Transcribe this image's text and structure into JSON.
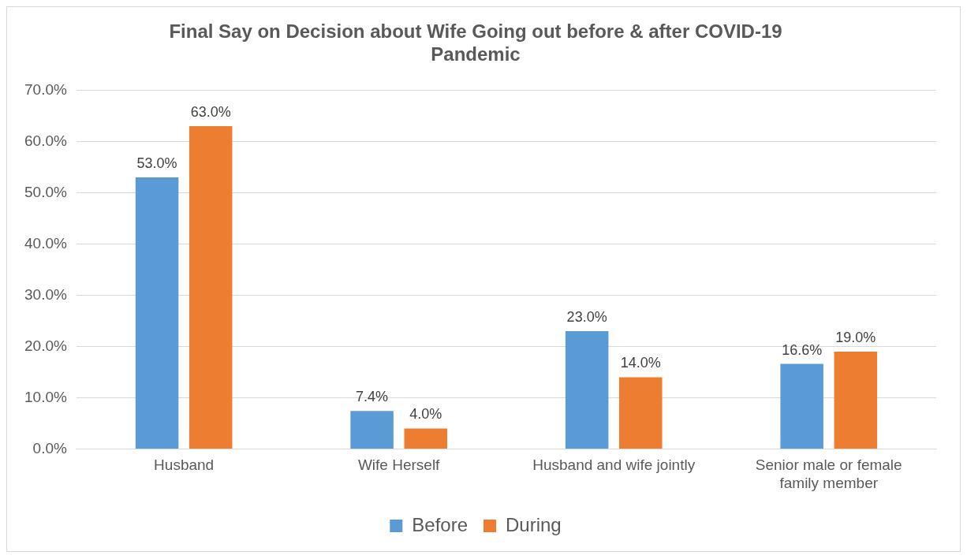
{
  "chart_data": {
    "type": "bar",
    "title": "Final Say on Decision about Wife Going out before & after COVID-19 Pandemic",
    "categories": [
      "Husband",
      "Wife Herself",
      "Husband and wife jointly",
      "Senior male or female family member"
    ],
    "series": [
      {
        "name": "Before",
        "color": "#5b9bd5",
        "values": [
          53.0,
          7.4,
          23.0,
          16.6
        ],
        "value_labels": [
          "53.0%",
          "7.4%",
          "23.0%",
          "16.6%"
        ]
      },
      {
        "name": "During",
        "color": "#ed7d31",
        "values": [
          63.0,
          4.0,
          14.0,
          19.0
        ],
        "value_labels": [
          "63.0%",
          "4.0%",
          "14.0%",
          "19.0%"
        ]
      }
    ],
    "ylim": [
      0,
      70
    ],
    "yticks": [
      {
        "value": 0,
        "label": "0.0%"
      },
      {
        "value": 10,
        "label": "10.0%"
      },
      {
        "value": 20,
        "label": "20.0%"
      },
      {
        "value": 30,
        "label": "30.0%"
      },
      {
        "value": 40,
        "label": "40.0%"
      },
      {
        "value": 50,
        "label": "50.0%"
      },
      {
        "value": 60,
        "label": "60.0%"
      },
      {
        "value": 70,
        "label": "70.0%"
      }
    ],
    "grid": "y",
    "legend": "bottom"
  }
}
